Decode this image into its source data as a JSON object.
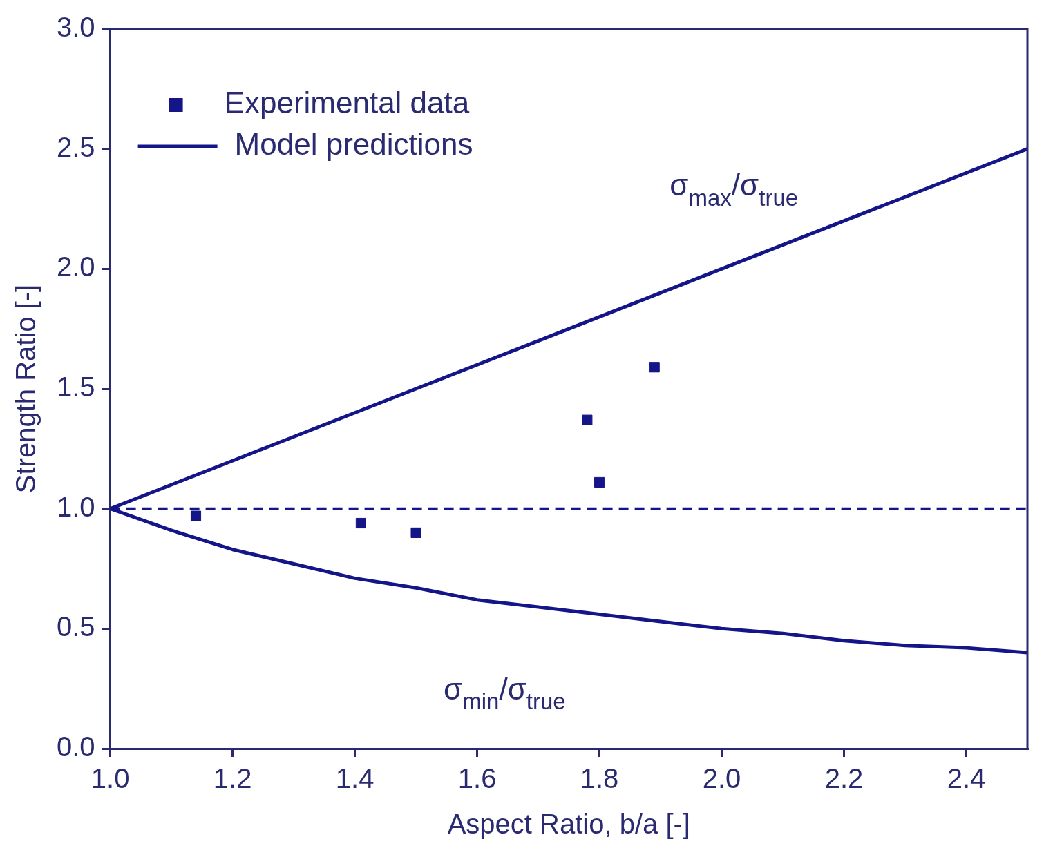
{
  "chart_data": {
    "type": "scatter",
    "xlabel": "Aspect Ratio, b/a [-]",
    "ylabel": "Strength Ratio [-]",
    "xlim": [
      1,
      2.5
    ],
    "ylim": [
      0,
      3
    ],
    "xticks": [
      {
        "value": 1,
        "label": "1.0"
      },
      {
        "value": 1.2,
        "label": "1.2"
      },
      {
        "value": 1.4,
        "label": "1.4"
      },
      {
        "value": 1.6,
        "label": "1.6"
      },
      {
        "value": 1.8,
        "label": "1.8"
      },
      {
        "value": 2,
        "label": "2.0"
      },
      {
        "value": 2.2,
        "label": "2.2"
      },
      {
        "value": 2.4,
        "label": "2.4"
      }
    ],
    "yticks": [
      {
        "value": 0,
        "label": "0.0"
      },
      {
        "value": 0.5,
        "label": "0.5"
      },
      {
        "value": 1,
        "label": "1.0"
      },
      {
        "value": 1.5,
        "label": "1.5"
      },
      {
        "value": 2,
        "label": "2.0"
      },
      {
        "value": 2.5,
        "label": "2.5"
      },
      {
        "value": 3,
        "label": "3.0"
      }
    ],
    "grid": false,
    "legend": "top left",
    "series": [
      {
        "name": "Experimental data",
        "type": "scatter",
        "marker": "square",
        "color": "#15158a",
        "x": [
          1.14,
          1.41,
          1.5,
          1.78,
          1.8,
          1.89
        ],
        "values": [
          0.97,
          0.94,
          0.9,
          1.37,
          1.11,
          1.59
        ]
      },
      {
        "name": "Model predictions",
        "type": "line",
        "line_style": "solid",
        "color": "#15158a",
        "x": [
          1,
          2.5
        ],
        "values": [
          1,
          2.5
        ]
      },
      {
        "type": "line",
        "line_style": "solid",
        "color": "#15158a",
        "x": [
          1,
          1.1,
          1.2,
          1.3,
          1.4,
          1.5,
          1.6,
          1.7,
          1.8,
          1.9,
          2,
          2.1,
          2.2,
          2.3,
          2.4,
          2.5
        ],
        "values": [
          1,
          0.91,
          0.83,
          0.77,
          0.71,
          0.67,
          0.62,
          0.59,
          0.56,
          0.53,
          0.5,
          0.48,
          0.45,
          0.43,
          0.42,
          0.4
        ]
      }
    ],
    "ref_lines": [
      {
        "axis": "y",
        "value": 1,
        "line_style": "dashed",
        "color": "#15158a"
      }
    ],
    "annotations": [
      "σ$_{max}$/σ$_{true}$",
      "σ$_{min}$/σ$_{true}$"
    ]
  }
}
